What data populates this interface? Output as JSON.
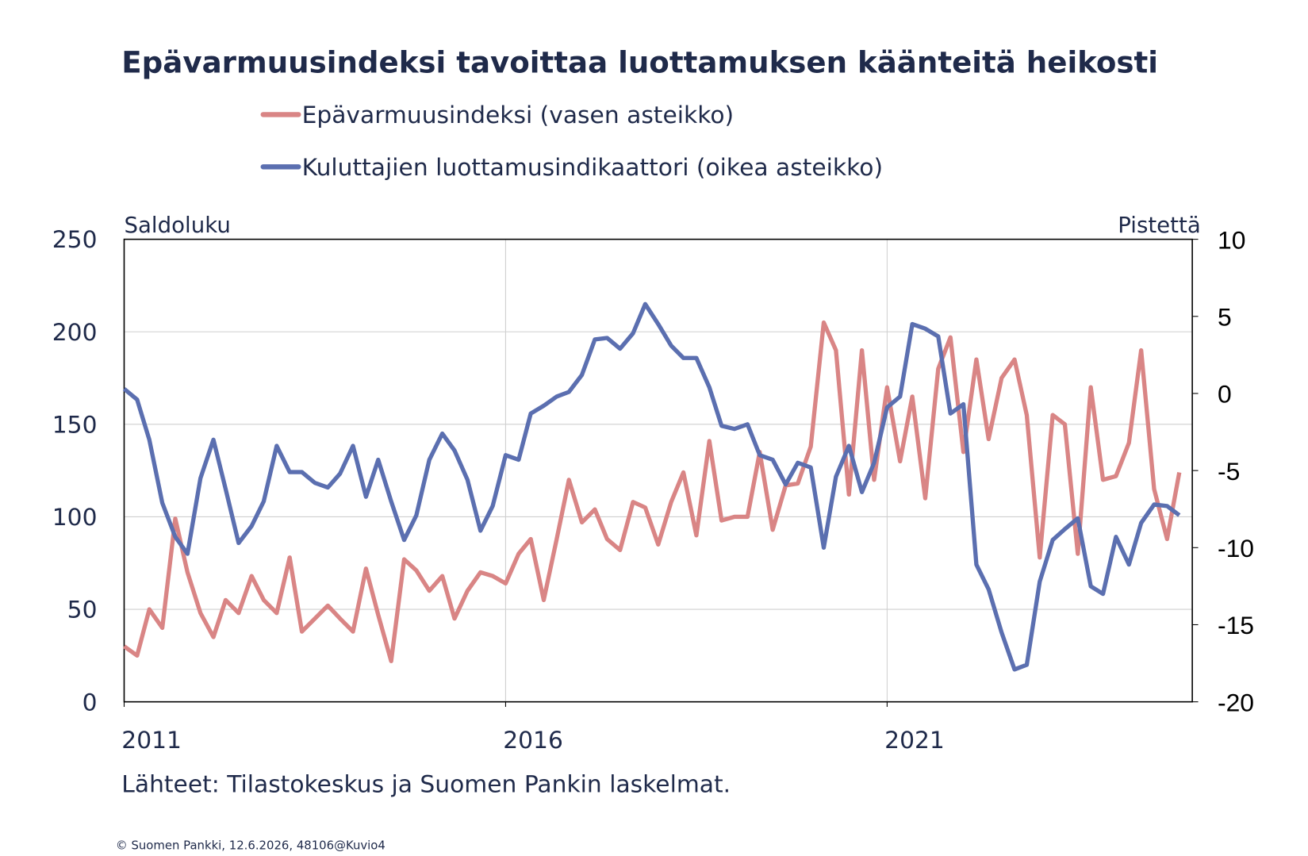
{
  "chart_data": {
    "type": "line",
    "title": "Epävarmuusindeksi tavoittaa luottamuksen käänteitä heikosti",
    "ylabel": "Saldoluku",
    "y2label": "Pistettä",
    "source": "Lähteet: Tilastokeskus ja Suomen Pankin laskelmat.",
    "footer": "© Suomen Pankki, 12.6.2026, 48106@Kuvio4",
    "xlim": [
      2011,
      2025
    ],
    "xticks": [
      2011,
      2016,
      2021
    ],
    "ylim": [
      0,
      250
    ],
    "yticks": [
      0,
      50,
      100,
      150,
      200,
      250
    ],
    "y2lim": [
      -20,
      10
    ],
    "y2ticks": [
      -20,
      -15,
      -10,
      -5,
      0,
      5,
      10
    ],
    "grid": true,
    "x": [
      2011,
      2011.17,
      2011.33,
      2011.5,
      2011.67,
      2011.83,
      2012,
      2012.17,
      2012.33,
      2012.5,
      2012.67,
      2012.83,
      2013,
      2013.17,
      2013.33,
      2013.5,
      2013.67,
      2013.83,
      2014,
      2014.17,
      2014.33,
      2014.5,
      2014.67,
      2014.83,
      2015,
      2015.17,
      2015.33,
      2015.5,
      2015.67,
      2015.83,
      2016,
      2016.17,
      2016.33,
      2016.5,
      2016.67,
      2016.83,
      2017,
      2017.17,
      2017.33,
      2017.5,
      2017.67,
      2017.83,
      2018,
      2018.17,
      2018.33,
      2018.5,
      2018.67,
      2018.83,
      2019,
      2019.17,
      2019.33,
      2019.5,
      2019.67,
      2019.83,
      2020,
      2020.17,
      2020.33,
      2020.5,
      2020.67,
      2020.83,
      2021,
      2021.17,
      2021.33,
      2021.5,
      2021.67,
      2021.83,
      2022,
      2022.17,
      2022.33,
      2022.5,
      2022.67,
      2022.83,
      2023,
      2023.17,
      2023.33,
      2023.5,
      2023.67,
      2023.83,
      2024,
      2024.17,
      2024.33,
      2024.5,
      2024.67,
      2024.83
    ],
    "series": [
      {
        "name": "Epävarmuusindeksi (vasen asteikko)",
        "color": "#d98585",
        "values": [
          30,
          25,
          50,
          40,
          99,
          70,
          48,
          35,
          55,
          48,
          68,
          55,
          48,
          78,
          38,
          45,
          52,
          45,
          38,
          72,
          47,
          22,
          77,
          71,
          60,
          68,
          45,
          60,
          70,
          68,
          64,
          80,
          88,
          55,
          88,
          120,
          97,
          104,
          88,
          82,
          108,
          105,
          85,
          108,
          124,
          90,
          141,
          98,
          100,
          100,
          135,
          93,
          117,
          118,
          138,
          205,
          190,
          112,
          190,
          120,
          170,
          130,
          165,
          110,
          180,
          197,
          135,
          185,
          142,
          175,
          185,
          155,
          78,
          155,
          150,
          80,
          170,
          120,
          122,
          140,
          190,
          115,
          88,
          124
        ]
      },
      {
        "name": "Kuluttajien luottamusindikaattori (oikea asteikko)",
        "color": "#5b6fb0",
        "axis": "y2",
        "values": [
          0.3,
          -0.4,
          -3,
          -7.1,
          -9.3,
          -10.4,
          -5.5,
          -3,
          -6.2,
          -9.7,
          -8.6,
          -7,
          -3.4,
          -5.1,
          -5.1,
          -5.8,
          -6.1,
          -5.2,
          -3.4,
          -6.7,
          -4.3,
          -7,
          -9.5,
          -7.9,
          -4.3,
          -2.6,
          -3.7,
          -5.6,
          -8.9,
          -7.3,
          -4,
          -4.3,
          -1.3,
          -0.8,
          -0.2,
          0.1,
          1.2,
          3.5,
          3.6,
          2.9,
          3.9,
          5.8,
          4.5,
          3.1,
          2.3,
          2.3,
          0.4,
          -2.1,
          -2.3,
          -2,
          -4,
          -4.3,
          -5.9,
          -4.5,
          -4.8,
          -10,
          -5.4,
          -3.4,
          -6.4,
          -4.5,
          -0.9,
          -0.2,
          4.5,
          4.2,
          3.7,
          -1.3,
          -0.7,
          -11.1,
          -12.7,
          -15.5,
          -17.9,
          -17.6,
          -12.2,
          -9.5,
          -8.8,
          -8.1,
          -12.5,
          -13,
          -9.3,
          -11.1,
          -8.4,
          -7.2,
          -7.3,
          -7.9
        ]
      }
    ]
  }
}
